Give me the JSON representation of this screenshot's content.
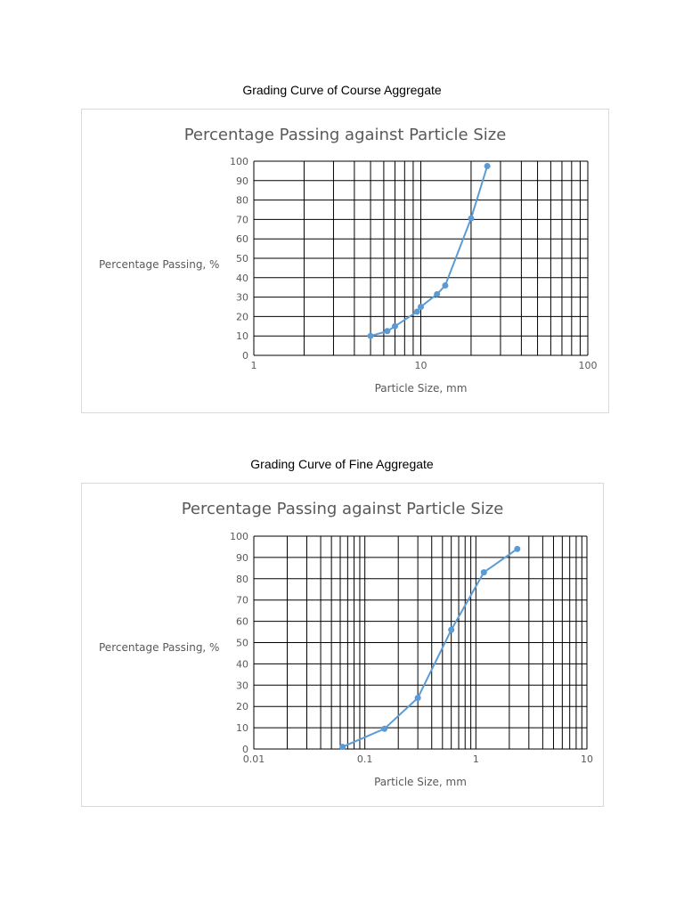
{
  "captions": {
    "coarse": "Grading Curve of Course Aggregate",
    "fine": "Grading Curve of Fine Aggregate"
  },
  "chart_data": [
    {
      "type": "scatter",
      "title": "Percentage Passing against Particle Size",
      "xlabel": "Particle Size, mm",
      "ylabel": "Percentage Passing, %",
      "xscale": "log",
      "xlim": [
        1,
        100
      ],
      "ylim": [
        0,
        100
      ],
      "xticks": [
        "1",
        "10",
        "100"
      ],
      "yticks": [
        "0",
        "10",
        "20",
        "30",
        "40",
        "50",
        "60",
        "70",
        "80",
        "90",
        "100"
      ],
      "grid": true,
      "line_color": "#5b9bd5",
      "series": [
        {
          "x": [
            5,
            6.3,
            7,
            9.5,
            10,
            12.5,
            14,
            20,
            25
          ],
          "y": [
            10,
            12.5,
            15,
            22.5,
            25,
            31.5,
            36,
            70.5,
            97.5
          ]
        }
      ]
    },
    {
      "type": "scatter",
      "title": "Percentage Passing against Particle Size",
      "xlabel": "Particle Size, mm",
      "ylabel": "Percentage Passing, %",
      "xscale": "log",
      "xlim": [
        0.01,
        10
      ],
      "ylim": [
        0,
        100
      ],
      "xticks": [
        "0.01",
        "0.1",
        "1",
        "10"
      ],
      "yticks": [
        "0",
        "10",
        "20",
        "30",
        "40",
        "50",
        "60",
        "70",
        "80",
        "90",
        "100"
      ],
      "grid": true,
      "line_color": "#5b9bd5",
      "series": [
        {
          "x": [
            0.063,
            0.15,
            0.3,
            0.6,
            1.18,
            2.36
          ],
          "y": [
            1,
            9.5,
            24,
            56,
            83,
            94
          ]
        }
      ]
    }
  ]
}
